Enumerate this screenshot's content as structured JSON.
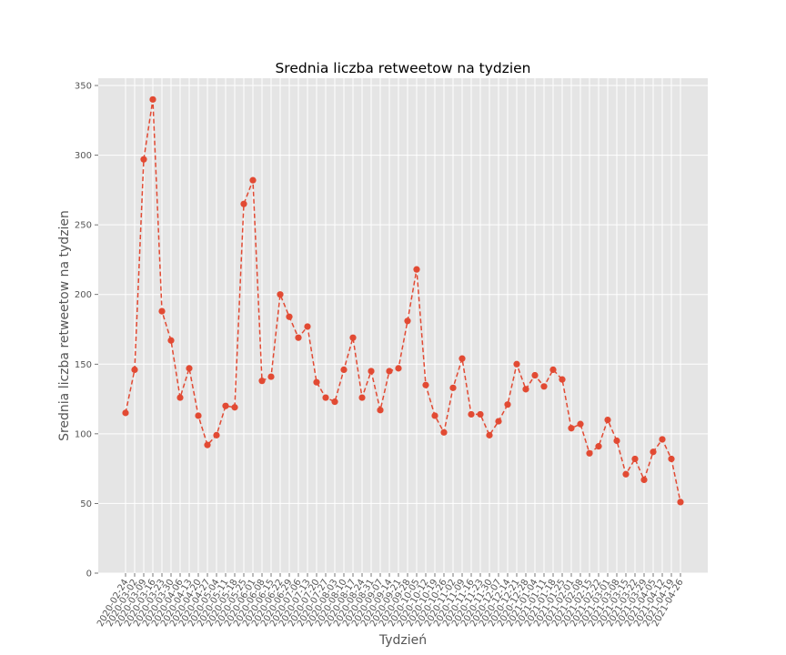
{
  "chart_data": {
    "type": "line",
    "title": "Srednia liczba retweetow na tydzien",
    "xlabel": "Tydzień",
    "ylabel": "Srednia liczba retweetow na tydzien",
    "ylim": [
      0,
      350
    ],
    "yticks": [
      0,
      50,
      100,
      150,
      200,
      250,
      300,
      350
    ],
    "grid": true,
    "line_style": "dashed",
    "marker": "circle",
    "colors": {
      "series": "#e24a33",
      "plot_background": "#e5e5e5",
      "grid": "#ffffff",
      "tick_label": "#555555"
    },
    "categories": [
      "2020-02-24",
      "2020-03-02",
      "2020-03-09",
      "2020-03-16",
      "2020-03-23",
      "2020-03-30",
      "2020-04-06",
      "2020-04-13",
      "2020-04-20",
      "2020-04-27",
      "2020-05-04",
      "2020-05-11",
      "2020-05-18",
      "2020-05-25",
      "2020-06-01",
      "2020-06-08",
      "2020-06-15",
      "2020-06-22",
      "2020-06-29",
      "2020-07-06",
      "2020-07-13",
      "2020-07-20",
      "2020-07-27",
      "2020-08-03",
      "2020-08-10",
      "2020-08-17",
      "2020-08-24",
      "2020-08-31",
      "2020-09-07",
      "2020-09-14",
      "2020-09-21",
      "2020-09-28",
      "2020-10-05",
      "2020-10-12",
      "2020-10-19",
      "2020-10-26",
      "2020-11-02",
      "2020-11-09",
      "2020-11-16",
      "2020-11-23",
      "2020-11-30",
      "2020-12-07",
      "2020-12-14",
      "2020-12-21",
      "2020-12-28",
      "2021-01-04",
      "2021-01-11",
      "2021-01-18",
      "2021-01-25",
      "2021-02-01",
      "2021-02-08",
      "2021-02-15",
      "2021-02-22",
      "2021-03-01",
      "2021-03-08",
      "2021-03-15",
      "2021-03-22",
      "2021-03-29",
      "2021-04-05",
      "2021-04-12",
      "2021-04-19",
      "2021-04-26"
    ],
    "series": [
      {
        "values": [
          115,
          146,
          297,
          340,
          188,
          167,
          126,
          147,
          113,
          92,
          99,
          120,
          119,
          265,
          282,
          138,
          141,
          200,
          184,
          169,
          177,
          137,
          126,
          123,
          146,
          169,
          126,
          145,
          117,
          145,
          147,
          181,
          218,
          135,
          113,
          101,
          133,
          154,
          114,
          114,
          99,
          109,
          121,
          150,
          132,
          142,
          134,
          146,
          139,
          104,
          107,
          86,
          91,
          110,
          95,
          71,
          82,
          67,
          87,
          96,
          82,
          51
        ]
      }
    ]
  }
}
